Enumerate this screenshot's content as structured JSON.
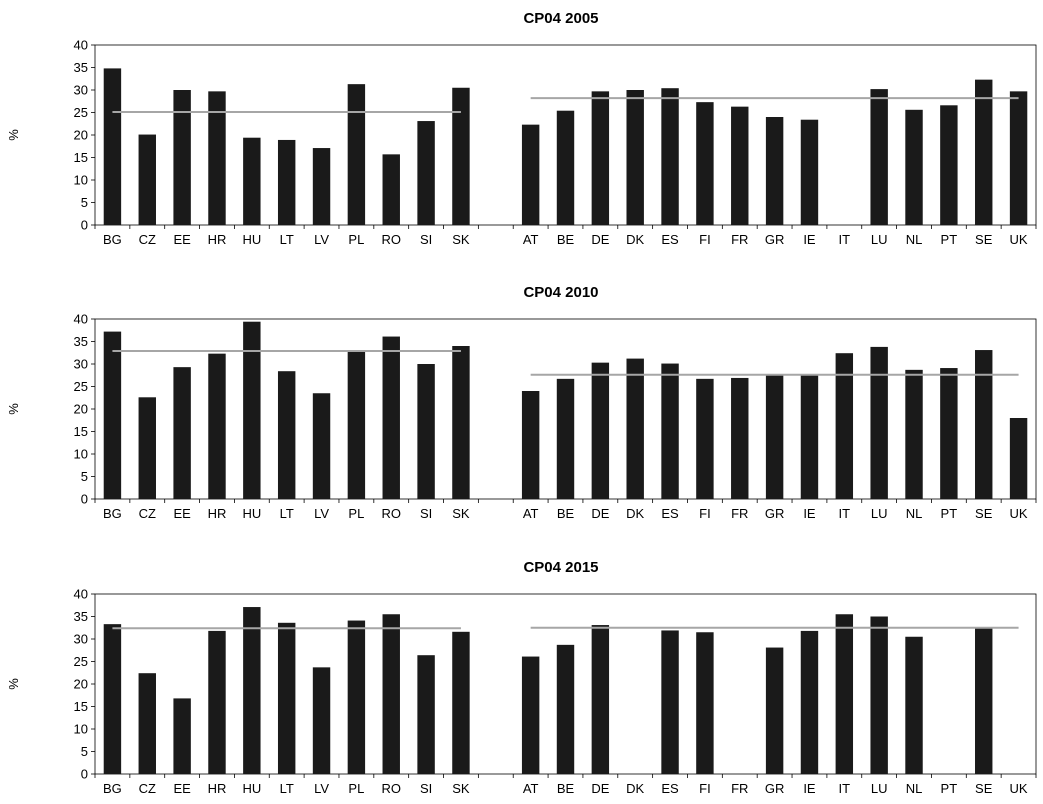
{
  "chart_data": [
    {
      "type": "bar",
      "title": "CP04 2005",
      "ylabel": "%",
      "xlabel": "",
      "ylim": [
        0,
        40
      ],
      "yticks": [
        0,
        5,
        10,
        15,
        20,
        25,
        30,
        35,
        40
      ],
      "categories": [
        "BG",
        "CZ",
        "EE",
        "HR",
        "HU",
        "LT",
        "LV",
        "PL",
        "RO",
        "SI",
        "SK",
        "",
        "AT",
        "BE",
        "DE",
        "DK",
        "ES",
        "FI",
        "FR",
        "GR",
        "IE",
        "IT",
        "LU",
        "NL",
        "PT",
        "SE",
        "UK"
      ],
      "values": [
        34.8,
        20.1,
        30.0,
        29.7,
        19.4,
        18.9,
        17.1,
        31.3,
        15.7,
        23.1,
        30.5,
        null,
        22.3,
        25.4,
        29.7,
        30.0,
        30.4,
        27.3,
        26.3,
        24.0,
        23.4,
        null,
        30.2,
        25.6,
        26.6,
        32.3,
        29.7
      ],
      "group_lines": [
        {
          "from": "BG",
          "to": "SK",
          "value": 25.1
        },
        {
          "from": "AT",
          "to": "UK",
          "value": 28.2
        }
      ],
      "colors": {
        "bars": "#1a1a1a",
        "line": "#a6a6a6"
      }
    },
    {
      "type": "bar",
      "title": "CP04 2010",
      "ylabel": "%",
      "xlabel": "",
      "ylim": [
        0,
        40
      ],
      "yticks": [
        0,
        5,
        10,
        15,
        20,
        25,
        30,
        35,
        40
      ],
      "categories": [
        "BG",
        "CZ",
        "EE",
        "HR",
        "HU",
        "LT",
        "LV",
        "PL",
        "RO",
        "SI",
        "SK",
        "",
        "AT",
        "BE",
        "DE",
        "DK",
        "ES",
        "FI",
        "FR",
        "GR",
        "IE",
        "IT",
        "LU",
        "NL",
        "PT",
        "SE",
        "UK"
      ],
      "values": [
        37.2,
        22.6,
        29.3,
        32.3,
        39.4,
        28.4,
        23.5,
        32.9,
        36.1,
        30.0,
        34.0,
        null,
        24.0,
        26.7,
        30.3,
        31.2,
        30.1,
        26.7,
        26.9,
        27.5,
        27.5,
        32.4,
        33.8,
        28.7,
        29.1,
        33.1,
        18.0
      ],
      "group_lines": [
        {
          "from": "BG",
          "to": "SK",
          "value": 32.9
        },
        {
          "from": "AT",
          "to": "UK",
          "value": 27.6
        }
      ],
      "colors": {
        "bars": "#1a1a1a",
        "line": "#a6a6a6"
      }
    },
    {
      "type": "bar",
      "title": "CP04 2015",
      "ylabel": "%",
      "xlabel": "",
      "ylim": [
        0,
        40
      ],
      "yticks": [
        0,
        5,
        10,
        15,
        20,
        25,
        30,
        35,
        40
      ],
      "categories": [
        "BG",
        "CZ",
        "EE",
        "HR",
        "HU",
        "LT",
        "LV",
        "PL",
        "RO",
        "SI",
        "SK",
        "",
        "AT",
        "BE",
        "DE",
        "DK",
        "ES",
        "FI",
        "FR",
        "GR",
        "IE",
        "IT",
        "LU",
        "NL",
        "PT",
        "SE",
        "UK"
      ],
      "values": [
        33.3,
        22.4,
        16.8,
        31.8,
        37.1,
        33.6,
        23.7,
        34.1,
        35.5,
        26.4,
        31.6,
        null,
        26.1,
        28.7,
        33.1,
        null,
        31.9,
        31.5,
        null,
        28.1,
        31.8,
        35.5,
        35.0,
        30.5,
        null,
        32.4,
        null
      ],
      "group_lines": [
        {
          "from": "BG",
          "to": "SK",
          "value": 32.4
        },
        {
          "from": "AT",
          "to": "UK",
          "value": 32.5
        }
      ],
      "colors": {
        "bars": "#1a1a1a",
        "line": "#a6a6a6"
      }
    }
  ]
}
